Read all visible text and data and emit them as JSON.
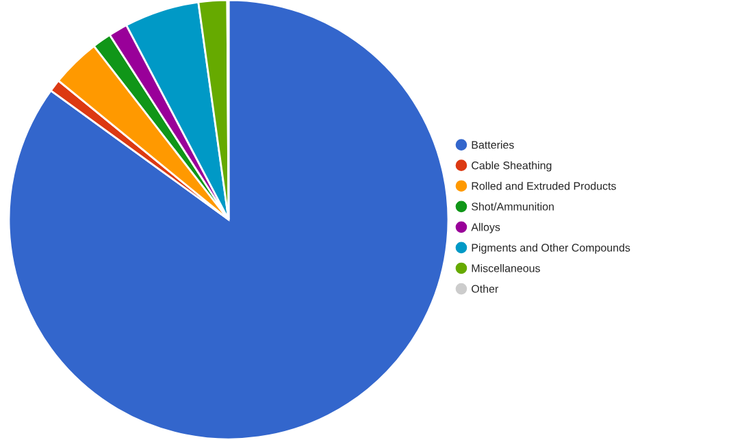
{
  "chart_data": {
    "type": "pie",
    "categories": [
      "Batteries",
      "Cable Sheathing",
      "Rolled and Extruded Products",
      "Shot/Ammunition",
      "Alloys",
      "Pigments and Other Compounds",
      "Miscellaneous",
      "Other"
    ],
    "values": [
      85,
      0.9,
      3.6,
      1.4,
      1.4,
      5.5,
      2.1,
      0.1
    ],
    "colors": [
      "#3366cc",
      "#dc3912",
      "#ff9900",
      "#109618",
      "#990099",
      "#0099c6",
      "#66aa00",
      "#cccccc"
    ],
    "legend": "right"
  }
}
